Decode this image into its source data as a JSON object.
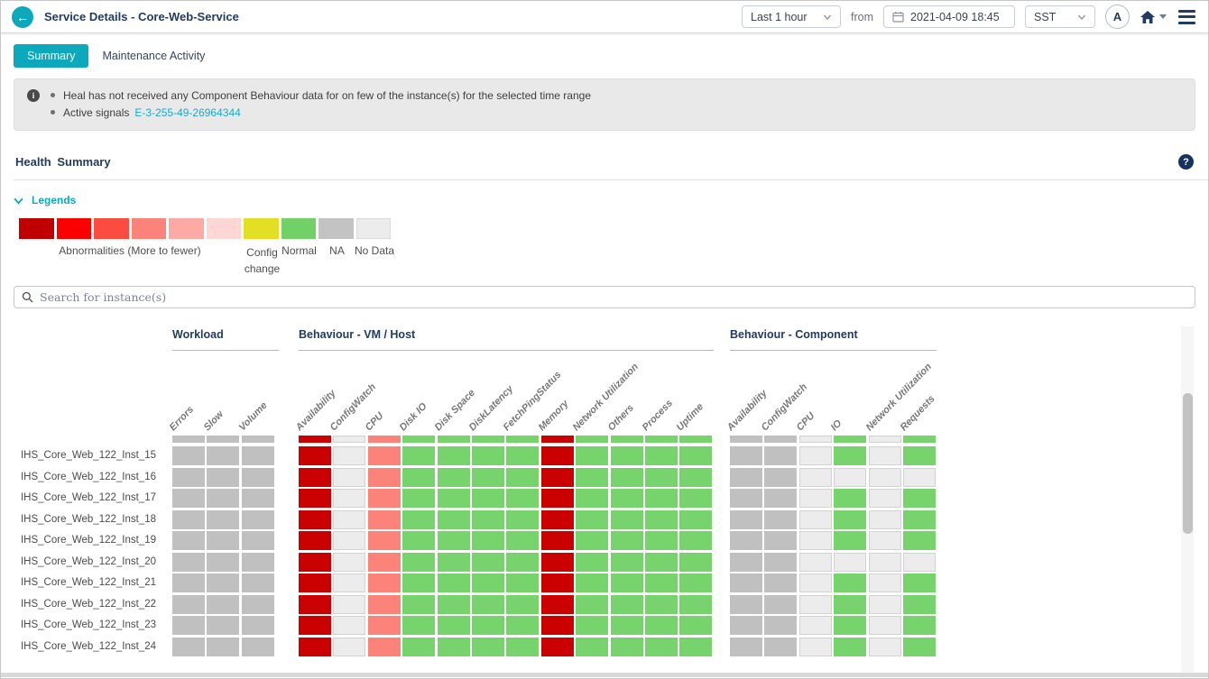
{
  "colors": {
    "accent_teal": "#0ca9bd",
    "navy": "#223b5f",
    "link": "#1ea7c9"
  },
  "header": {
    "title": "Service Details - Core-Web-Service",
    "back_glyph": "←",
    "time_range": "Last 1 hour",
    "from_label": "from",
    "datetime": "2021-04-09 18:45",
    "timezone": "SST",
    "avatar_letter": "A"
  },
  "tabs": [
    {
      "label": "Summary",
      "active": true
    },
    {
      "label": "Maintenance Activity",
      "active": false
    }
  ],
  "notices": {
    "info_glyph": "i",
    "line1": "Heal has not received any Component Behaviour data for on few of the instance(s) for the selected time range",
    "line2_prefix": "Active signals",
    "line2_link": "E-3-255-49-26964344"
  },
  "section": {
    "title": "Health Summary",
    "help_glyph": "?"
  },
  "legends": {
    "toggle_label": "Legends",
    "swatches": [
      "#c00000",
      "#fd0000",
      "#fc4b3f",
      "#fc837a",
      "#fdaaa4",
      "#fed6d3",
      "#e2df24",
      "#72d166",
      "#c3c3c3",
      "#ececec"
    ],
    "abnormalities_label": "Abnormalities (More to fewer)",
    "config_line1": "Config",
    "config_line2": "change",
    "normal_label": "Normal",
    "na_label": "NA",
    "nodata_label": "No Data"
  },
  "search": {
    "placeholder": "Search for instance(s)"
  },
  "heatmap": {
    "groups": [
      {
        "label": "Workload",
        "columns": [
          "Errors",
          "Slow",
          "Volume"
        ]
      },
      {
        "label": "Behaviour - VM / Host",
        "columns": [
          "Availability",
          "ConfigWatch",
          "CPU",
          "Disk IO",
          "Disk Space",
          "DiskLatency",
          "FetchPingStatus",
          "Memory",
          "Network Utilization",
          "Others",
          "Process",
          "Uptime"
        ]
      },
      {
        "label": "Behaviour - Component",
        "columns": [
          "Availability",
          "ConfigWatch",
          "CPU",
          "IO",
          "Network Utilization",
          "Requests"
        ]
      }
    ],
    "cell_states": {
      "A": {
        "name": "high-abnormality",
        "color": "#cb0000"
      },
      "S": {
        "name": "abnormality",
        "color": "#fc837a"
      },
      "G": {
        "name": "normal",
        "color": "#77d36b"
      },
      "N": {
        "name": "na",
        "color": "#c0c0c0"
      },
      "D": {
        "name": "no-data",
        "color": "#ececec"
      }
    },
    "partial_row": {
      "workload": "NNN",
      "vmhost": "ADSGGGGAGGGG",
      "component": "NNDGDG"
    },
    "rows": [
      {
        "label": "IHS_Core_Web_122_Inst_15",
        "workload": "NNN",
        "vmhost": "ADSGGGGAGGGG",
        "component": "NNDGDG"
      },
      {
        "label": "IHS_Core_Web_122_Inst_16",
        "workload": "NNN",
        "vmhost": "ADSGGGGAGGGG",
        "component": "NNDDDD"
      },
      {
        "label": "IHS_Core_Web_122_Inst_17",
        "workload": "NNN",
        "vmhost": "ADSGGGGAGGGG",
        "component": "NNDGDG"
      },
      {
        "label": "IHS_Core_Web_122_Inst_18",
        "workload": "NNN",
        "vmhost": "ADSGGGGAGGGG",
        "component": "NNDGDG"
      },
      {
        "label": "IHS_Core_Web_122_Inst_19",
        "workload": "NNN",
        "vmhost": "ADSGGGGAGGGG",
        "component": "NNDGDG"
      },
      {
        "label": "IHS_Core_Web_122_Inst_20",
        "workload": "NNN",
        "vmhost": "ADSGGGGAGGGG",
        "component": "NNDDDD"
      },
      {
        "label": "IHS_Core_Web_122_Inst_21",
        "workload": "NNN",
        "vmhost": "ADSGGGGAGGGG",
        "component": "NNDGDG"
      },
      {
        "label": "IHS_Core_Web_122_Inst_22",
        "workload": "NNN",
        "vmhost": "ADSGGGGAGGGG",
        "component": "NNDGDG"
      },
      {
        "label": "IHS_Core_Web_122_Inst_23",
        "workload": "NNN",
        "vmhost": "ADSGGGGAGGGG",
        "component": "NNDGDG"
      },
      {
        "label": "IHS_Core_Web_122_Inst_24",
        "workload": "NNN",
        "vmhost": "ADSGGGGAGGGG",
        "component": "NNDGDG"
      }
    ]
  }
}
